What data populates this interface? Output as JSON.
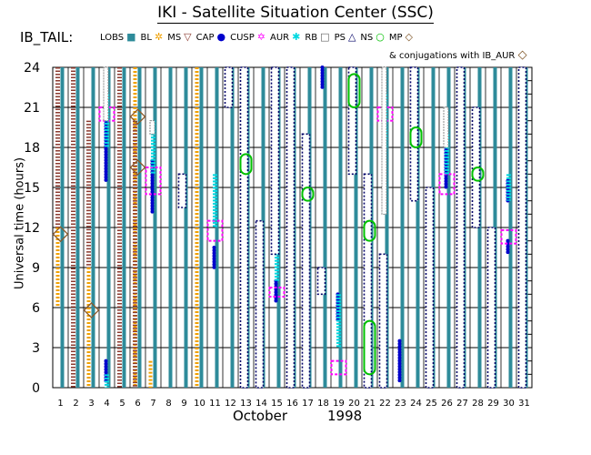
{
  "title": "IKI - Satellite Situation Center (SSC)",
  "region_label": "IB_TAIL:",
  "legend": [
    {
      "label": "LOBS",
      "icon": "square-filled-icon",
      "glyph": "■",
      "color": "#2e8b9a"
    },
    {
      "label": "BL",
      "icon": "star-icon",
      "glyph": "✲",
      "color": "#f0a000"
    },
    {
      "label": "MS",
      "icon": "triangle-down-icon",
      "glyph": "▽",
      "color": "#8b3a2f"
    },
    {
      "label": "CAP",
      "icon": "dot-icon",
      "glyph": "●",
      "color": "#0000cc"
    },
    {
      "label": "CUSP",
      "icon": "star-of-david-icon",
      "glyph": "✡",
      "color": "#ff00ff"
    },
    {
      "label": "AUR",
      "icon": "asterisk-icon",
      "glyph": "✱",
      "color": "#00d8e0"
    },
    {
      "label": "RB",
      "icon": "square-open-icon",
      "glyph": "□",
      "color": "#606060"
    },
    {
      "label": "PS",
      "icon": "triangle-up-icon",
      "glyph": "△",
      "color": "#000066"
    },
    {
      "label": "NS",
      "icon": "circle-open-icon",
      "glyph": "○",
      "color": "#00c000"
    },
    {
      "label": "MP",
      "icon": "diamond-icon",
      "glyph": "◇",
      "color": "#7a4f1f"
    }
  ],
  "conjugation_note": "& conjugations with IB_AUR",
  "colors": {
    "LOBS": "#2e8b9a",
    "BL": "#f0a000",
    "MS": "#8b3a2f",
    "CAP": "#0000cc",
    "CUSP": "#ff00ff",
    "AUR": "#00d8e0",
    "RB": "#888888",
    "PS": "#000066",
    "NS": "#00c000",
    "MP": "#8b5a2b"
  },
  "chart_data": {
    "type": "scatter",
    "title": "IKI - Satellite Situation Center (SSC)",
    "ylabel": "Universal time (hours)",
    "xlabel_month": "October",
    "xlabel_year": "1998",
    "x_ticks": [
      "1",
      "2",
      "3",
      "4",
      "5",
      "6",
      "7",
      "8",
      "9",
      "10",
      "11",
      "12",
      "13",
      "14",
      "15",
      "16",
      "17",
      "18",
      "19",
      "20",
      "21",
      "22",
      "23",
      "24",
      "25",
      "26",
      "27",
      "28",
      "29",
      "30",
      "31"
    ],
    "y_ticks": [
      "0",
      "3",
      "6",
      "9",
      "12",
      "15",
      "18",
      "21",
      "24"
    ],
    "ylim": [
      0,
      24
    ],
    "grid": true,
    "series": [
      {
        "name": "LOBS",
        "segments": [
          [
            1,
            0,
            24
          ],
          [
            2,
            0,
            24
          ],
          [
            3,
            0,
            24
          ],
          [
            4,
            0,
            24
          ],
          [
            5,
            0,
            24
          ],
          [
            6,
            0,
            24
          ],
          [
            7,
            0,
            24
          ],
          [
            8,
            0,
            24
          ],
          [
            9,
            0,
            24
          ],
          [
            10,
            0,
            24
          ],
          [
            11,
            0,
            24
          ],
          [
            12,
            0,
            24
          ],
          [
            13,
            0,
            24
          ],
          [
            14,
            0,
            24
          ],
          [
            15,
            0,
            24
          ],
          [
            16,
            0,
            24
          ],
          [
            17,
            0,
            24
          ],
          [
            18,
            0,
            24
          ],
          [
            19,
            0,
            24
          ],
          [
            20,
            0,
            24
          ],
          [
            21,
            0,
            24
          ],
          [
            22,
            0,
            24
          ],
          [
            23,
            0,
            24
          ],
          [
            24,
            0,
            24
          ],
          [
            25,
            0,
            24
          ],
          [
            26,
            0,
            24
          ],
          [
            27,
            0,
            24
          ],
          [
            28,
            0,
            24
          ],
          [
            29,
            0,
            24
          ],
          [
            30,
            0,
            24
          ],
          [
            31,
            0,
            24
          ]
        ]
      },
      {
        "name": "BL",
        "segments": [
          [
            1,
            6,
            12
          ],
          [
            3,
            0,
            3
          ],
          [
            3,
            3,
            9
          ],
          [
            6,
            0,
            24
          ],
          [
            7,
            0,
            2
          ],
          [
            10,
            0,
            24
          ]
        ]
      },
      {
        "name": "MS",
        "segments": [
          [
            1,
            12,
            24
          ],
          [
            2,
            0,
            24
          ],
          [
            3,
            9,
            20
          ],
          [
            5,
            0,
            24
          ],
          [
            6,
            0,
            20
          ]
        ]
      },
      {
        "name": "CAP",
        "segments": [
          [
            4,
            0.5,
            2
          ],
          [
            4,
            15.5,
            20
          ],
          [
            7,
            13,
            17
          ],
          [
            11,
            9,
            10.5
          ],
          [
            15,
            6.5,
            8
          ],
          [
            18,
            22.5,
            24
          ],
          [
            19,
            5,
            7
          ],
          [
            22,
            16,
            20
          ],
          [
            23,
            0.5,
            3.5
          ],
          [
            26,
            15,
            18
          ],
          [
            30,
            10,
            11
          ],
          [
            30,
            14,
            15.5
          ]
        ]
      },
      {
        "name": "CUSP",
        "segments": [
          [
            4,
            20,
            21
          ],
          [
            7,
            14.5,
            16.5
          ],
          [
            11,
            11,
            12.5
          ],
          [
            15,
            7,
            7.5
          ],
          [
            19,
            1,
            2
          ],
          [
            22,
            20,
            21
          ],
          [
            26,
            14.5,
            16
          ],
          [
            30,
            10.8,
            11.8
          ]
        ]
      },
      {
        "name": "AUR",
        "segments": [
          [
            4,
            0,
            1
          ],
          [
            4,
            18,
            22
          ],
          [
            7,
            16,
            20
          ],
          [
            11,
            12,
            16
          ],
          [
            15,
            8,
            11
          ],
          [
            19,
            3,
            7
          ],
          [
            22,
            18,
            22
          ],
          [
            26,
            16,
            19
          ],
          [
            30,
            14,
            16
          ]
        ]
      },
      {
        "name": "RB",
        "segments": [
          [
            4,
            20,
            24
          ],
          [
            7,
            19,
            20
          ],
          [
            22,
            13,
            24
          ],
          [
            26,
            18,
            21
          ]
        ]
      },
      {
        "name": "PS",
        "segments": [
          [
            9,
            13.5,
            16
          ],
          [
            12,
            21,
            24
          ],
          [
            13,
            0,
            24
          ],
          [
            14,
            0,
            12.5
          ],
          [
            15,
            10,
            24
          ],
          [
            16,
            0,
            24
          ],
          [
            17,
            0,
            19
          ],
          [
            18,
            7,
            9
          ],
          [
            20,
            16,
            24
          ],
          [
            21,
            0,
            16
          ],
          [
            22,
            0,
            10
          ],
          [
            24,
            14,
            24
          ],
          [
            25,
            0,
            15
          ],
          [
            27,
            0,
            24
          ],
          [
            28,
            12,
            21
          ],
          [
            29,
            0,
            12
          ],
          [
            31,
            0,
            24
          ]
        ]
      },
      {
        "name": "NS",
        "segments": [
          [
            13,
            16,
            17.5
          ],
          [
            17,
            14,
            15
          ],
          [
            20,
            21,
            23.5
          ],
          [
            21,
            11,
            12.5
          ],
          [
            21,
            1,
            5
          ],
          [
            24,
            18,
            19.5
          ],
          [
            28,
            15.5,
            16.5
          ]
        ]
      }
    ],
    "conjugations": [
      [
        1,
        11.5
      ],
      [
        3,
        5.8
      ],
      [
        6,
        16.5
      ],
      [
        6,
        20.3
      ]
    ]
  }
}
